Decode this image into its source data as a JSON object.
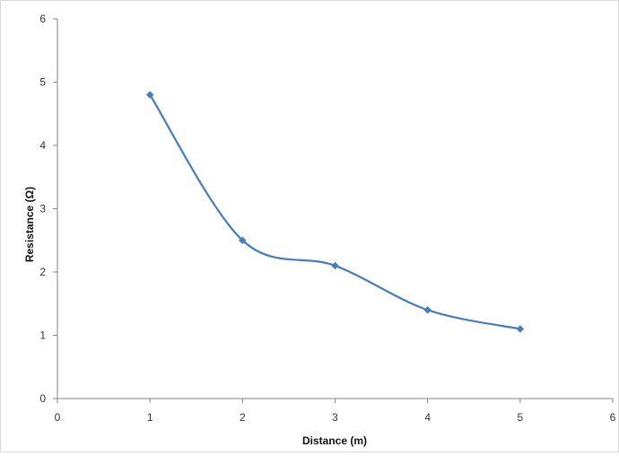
{
  "chart_data": {
    "type": "line",
    "smooth": true,
    "xlabel": "Distance (m)",
    "ylabel": "Resistance (Ω)",
    "xlim": [
      0,
      6
    ],
    "ylim": [
      0,
      6
    ],
    "x_ticks": [
      0,
      1,
      2,
      3,
      4,
      5,
      6
    ],
    "y_ticks": [
      0,
      1,
      2,
      3,
      4,
      5,
      6
    ],
    "grid": false,
    "legend": "none",
    "series": [
      {
        "x": [
          1,
          2,
          3,
          4,
          5
        ],
        "y": [
          4.8,
          2.5,
          2.1,
          1.4,
          1.1
        ],
        "color": "#4a7ebb",
        "marker": "diamond"
      }
    ]
  }
}
